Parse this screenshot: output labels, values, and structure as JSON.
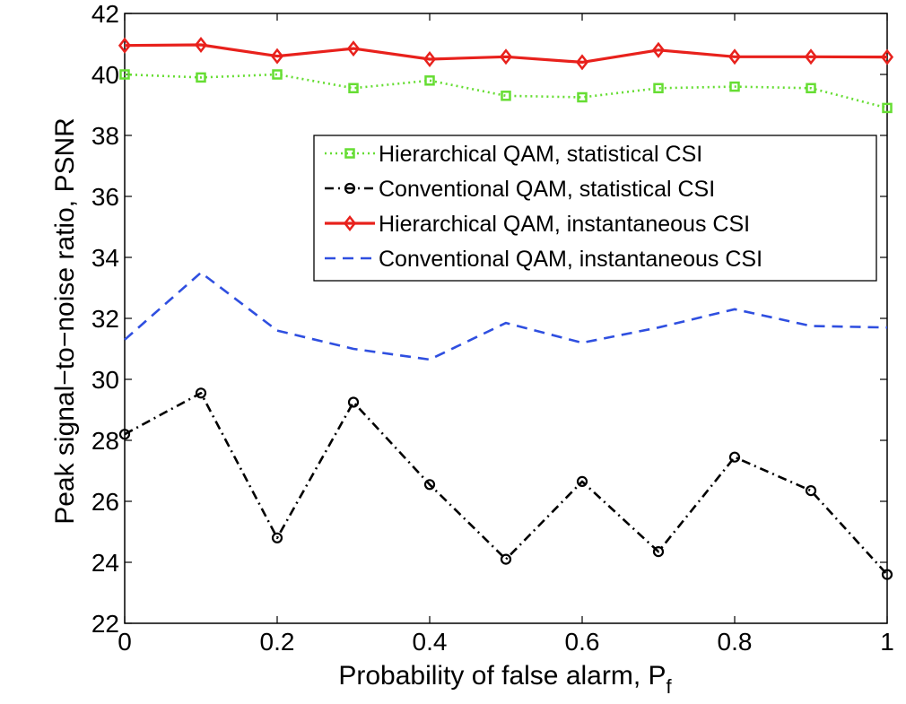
{
  "chart_data": {
    "type": "line",
    "xlabel": "Probability of false alarm, P",
    "xlabel_subscript": "f",
    "ylabel": "Peak signal−to−noise ratio, PSNR",
    "xlim": [
      0,
      1
    ],
    "ylim": [
      22,
      42
    ],
    "xticks": [
      0,
      0.2,
      0.4,
      0.6,
      0.8,
      1
    ],
    "xtick_labels": [
      "0",
      "0.2",
      "0.4",
      "0.6",
      "0.8",
      "1"
    ],
    "yticks": [
      22,
      24,
      26,
      28,
      30,
      32,
      34,
      36,
      38,
      40,
      42
    ],
    "ytick_labels": [
      "22",
      "24",
      "26",
      "28",
      "30",
      "32",
      "34",
      "36",
      "38",
      "40",
      "42"
    ],
    "grid": false,
    "legend_position": "top-right",
    "x": [
      0,
      0.1,
      0.2,
      0.3,
      0.4,
      0.5,
      0.6,
      0.7,
      0.8,
      0.9,
      1.0
    ],
    "series": [
      {
        "name": "Hierarchical QAM, statistical CSI",
        "color": "#66dd33",
        "line": "dotted",
        "marker": "square",
        "values": [
          40.0,
          39.9,
          40.0,
          39.55,
          39.8,
          39.3,
          39.25,
          39.55,
          39.6,
          39.55,
          38.9
        ]
      },
      {
        "name": "Conventional QAM, statistical CSI",
        "color": "#000000",
        "line": "dashdot",
        "marker": "circle",
        "values": [
          28.2,
          29.55,
          24.8,
          29.25,
          26.55,
          24.1,
          26.65,
          24.35,
          27.45,
          26.35,
          23.6
        ]
      },
      {
        "name": "Hierarchical QAM, instantaneous CSI",
        "color": "#e8211c",
        "line": "solid",
        "marker": "diamond",
        "values": [
          40.95,
          40.97,
          40.6,
          40.85,
          40.5,
          40.58,
          40.4,
          40.8,
          40.58,
          40.58,
          40.57
        ]
      },
      {
        "name": "Conventional QAM, instantaneous CSI",
        "color": "#2f4fe0",
        "line": "dashed",
        "marker": "none",
        "values": [
          31.3,
          33.5,
          31.6,
          31.0,
          30.65,
          31.85,
          31.2,
          31.7,
          32.3,
          31.75,
          31.7
        ]
      }
    ]
  }
}
